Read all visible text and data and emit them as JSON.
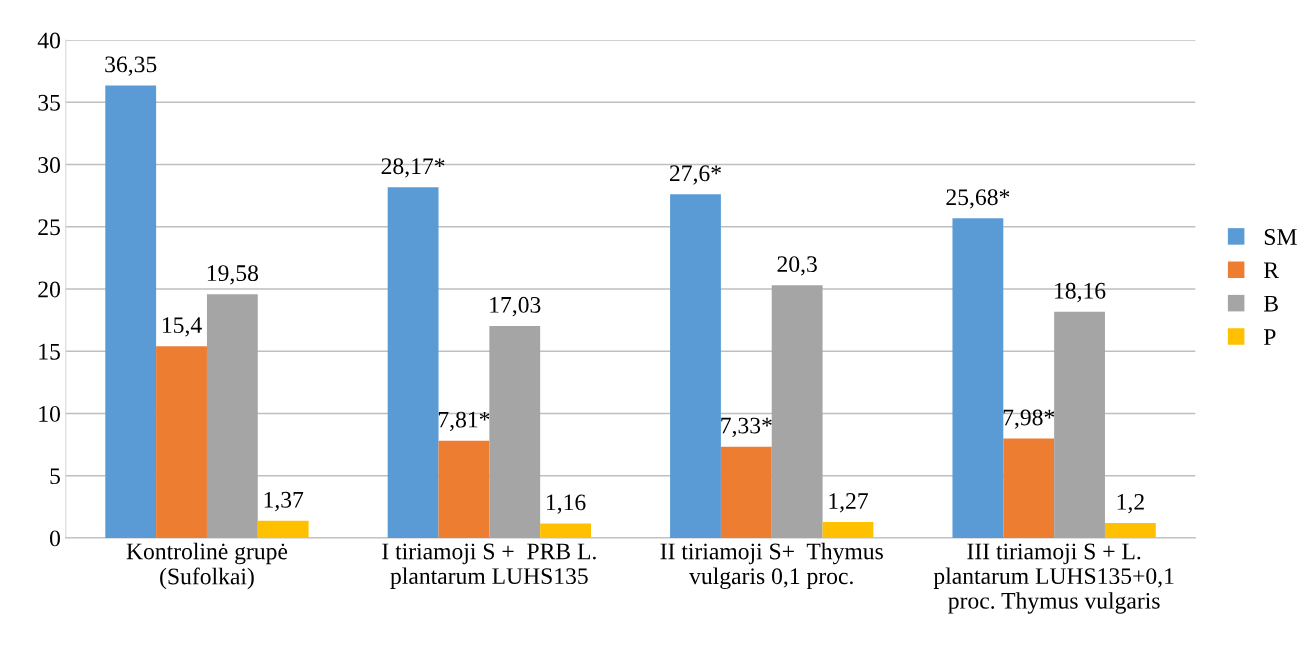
{
  "chart_data": {
    "type": "bar",
    "categories": [
      "Kontrolinė grupė\n(Sufolkai)",
      "I tiriamoji S +  PRB L.\nplantarum LUHS135",
      "II tiriamoji S+  Thymus\nvulgaris 0,1 proc.",
      "III tiriamoji S + L.\nplantarum LUHS135+0,1\nproc. Thymus vulgaris"
    ],
    "series": [
      {
        "name": "SM",
        "color": "#5b9bd5",
        "values": [
          36.35,
          28.17,
          27.6,
          25.68
        ],
        "value_labels": [
          "36,35",
          "28,17*",
          "27,6*",
          "25,68*"
        ]
      },
      {
        "name": "R",
        "color": "#ed7d31",
        "values": [
          15.4,
          7.81,
          7.33,
          7.98
        ],
        "value_labels": [
          "15,4",
          "7,81*",
          "7,33*",
          "7,98*"
        ]
      },
      {
        "name": "B",
        "color": "#a5a5a5",
        "values": [
          19.58,
          17.03,
          20.3,
          18.16
        ],
        "value_labels": [
          "19,58",
          "17,03",
          "20,3",
          "18,16"
        ]
      },
      {
        "name": "P",
        "color": "#ffc000",
        "values": [
          1.37,
          1.16,
          1.27,
          1.2
        ],
        "value_labels": [
          "1,37",
          "1,16",
          "1,27",
          "1,2"
        ]
      }
    ],
    "ylim": [
      0,
      40
    ],
    "yticks": [
      0,
      5,
      10,
      15,
      20,
      25,
      30,
      35,
      40
    ],
    "grid": "y",
    "legend": "right"
  }
}
